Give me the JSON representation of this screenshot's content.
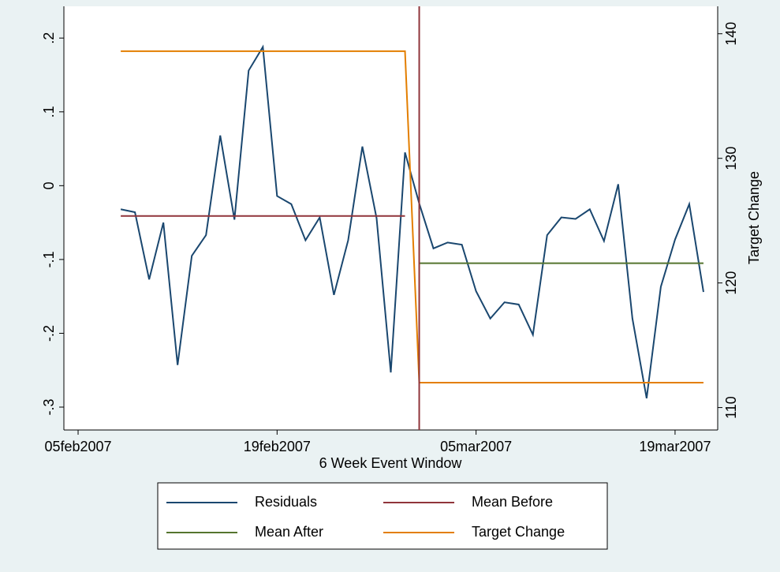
{
  "chart_data": {
    "type": "line",
    "xlabel": "6 Week Event Window",
    "y2label": "Target Change",
    "x": [
      "2007-02-08",
      "2007-02-09",
      "2007-02-10",
      "2007-02-11",
      "2007-02-12",
      "2007-02-13",
      "2007-02-14",
      "2007-02-15",
      "2007-02-16",
      "2007-02-17",
      "2007-02-18",
      "2007-02-19",
      "2007-02-20",
      "2007-02-21",
      "2007-02-22",
      "2007-02-23",
      "2007-02-24",
      "2007-02-25",
      "2007-02-26",
      "2007-02-27",
      "2007-02-28",
      "2007-03-01",
      "2007-03-02",
      "2007-03-03",
      "2007-03-04",
      "2007-03-05",
      "2007-03-06",
      "2007-03-07",
      "2007-03-08",
      "2007-03-09",
      "2007-03-10",
      "2007-03-11",
      "2007-03-12",
      "2007-03-13",
      "2007-03-14",
      "2007-03-15",
      "2007-03-16",
      "2007-03-17",
      "2007-03-18",
      "2007-03-19",
      "2007-03-20",
      "2007-03-21"
    ],
    "series": [
      {
        "name": "Residuals",
        "color": "#1a476f",
        "values": [
          -0.032,
          -0.036,
          -0.127,
          -0.05,
          -0.243,
          -0.095,
          -0.067,
          0.068,
          -0.046,
          0.156,
          0.188,
          -0.014,
          -0.025,
          -0.074,
          -0.043,
          -0.148,
          -0.074,
          0.053,
          -0.044,
          -0.253,
          0.045,
          -0.024,
          -0.085,
          -0.077,
          -0.08,
          -0.143,
          -0.18,
          -0.158,
          -0.161,
          -0.202,
          -0.067,
          -0.043,
          -0.045,
          -0.032,
          -0.075,
          0.002,
          -0.18,
          -0.288,
          -0.137,
          -0.073,
          -0.025,
          -0.144
        ]
      },
      {
        "name": "Mean Before",
        "color": "#90353b",
        "values": [
          -0.041,
          -0.041,
          -0.041,
          -0.041,
          -0.041,
          -0.041,
          -0.041,
          -0.041,
          -0.041,
          -0.041,
          -0.041,
          -0.041,
          -0.041,
          -0.041,
          -0.041,
          -0.041,
          -0.041,
          -0.041,
          -0.041,
          -0.041,
          -0.041,
          null,
          null,
          null,
          null,
          null,
          null,
          null,
          null,
          null,
          null,
          null,
          null,
          null,
          null,
          null,
          null,
          null,
          null,
          null,
          null,
          null
        ]
      },
      {
        "name": "Mean After",
        "color": "#55752f",
        "values": [
          null,
          null,
          null,
          null,
          null,
          null,
          null,
          null,
          null,
          null,
          null,
          null,
          null,
          null,
          null,
          null,
          null,
          null,
          null,
          null,
          null,
          -0.105,
          -0.105,
          -0.105,
          -0.105,
          -0.105,
          -0.105,
          -0.105,
          -0.105,
          -0.105,
          -0.105,
          -0.105,
          -0.105,
          -0.105,
          -0.105,
          -0.105,
          -0.105,
          -0.105,
          -0.105,
          -0.105,
          -0.105,
          -0.105
        ]
      },
      {
        "name": "Target Change",
        "color": "#e37e00",
        "axis": "y2",
        "values": [
          138.6,
          138.6,
          138.6,
          138.6,
          138.6,
          138.6,
          138.6,
          138.6,
          138.6,
          138.6,
          138.6,
          138.6,
          138.6,
          138.6,
          138.6,
          138.6,
          138.6,
          138.6,
          138.6,
          138.6,
          138.6,
          112,
          112,
          112,
          112,
          112,
          112,
          112,
          112,
          112,
          112,
          112,
          112,
          112,
          112,
          112,
          112,
          112,
          112,
          112,
          112,
          112
        ]
      }
    ],
    "xline": "2007-03-01",
    "xline_color": "#90353b",
    "xlim": [
      "2007-02-04",
      "2007-03-22"
    ],
    "xticks": [
      {
        "value": "2007-02-05",
        "label": "05feb2007"
      },
      {
        "value": "2007-02-19",
        "label": "19feb2007"
      },
      {
        "value": "2007-03-05",
        "label": "05mar2007"
      },
      {
        "value": "2007-03-19",
        "label": "19mar2007"
      }
    ],
    "ylim": [
      -0.331,
      0.243
    ],
    "yticks": [
      {
        "value": 0.2,
        "label": ".2"
      },
      {
        "value": 0.1,
        "label": ".1"
      },
      0,
      {
        "value": -0.1,
        "label": "-.1"
      },
      {
        "value": -0.2,
        "label": "-.2"
      },
      {
        "value": -0.3,
        "label": "-.3"
      }
    ],
    "y2lim": [
      108.2,
      142.2
    ],
    "y2ticks": [
      110,
      120,
      130,
      140
    ],
    "grid": false,
    "legend": "bottom"
  }
}
